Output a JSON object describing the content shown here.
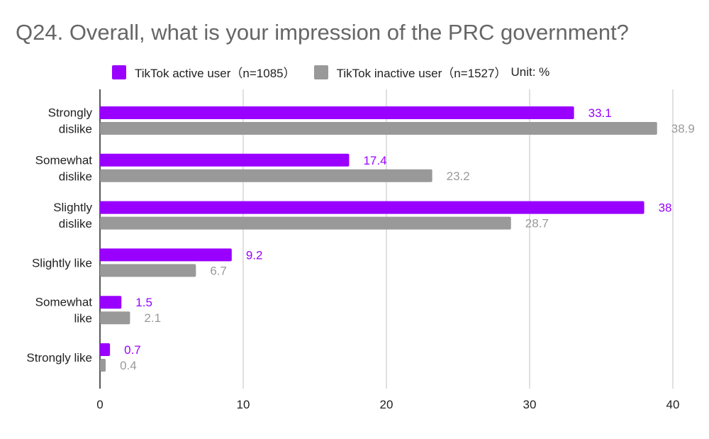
{
  "chart_data": {
    "type": "bar",
    "orientation": "horizontal",
    "title": "Q24. Overall, what is your impression of the PRC government?",
    "unit_note": "Unit: %",
    "categories": [
      [
        "Strongly",
        "dislike"
      ],
      [
        "Somewhat",
        "dislike"
      ],
      [
        "Slightly",
        "dislike"
      ],
      [
        "Slightly like"
      ],
      [
        "Somewhat",
        "like"
      ],
      [
        "Strongly like"
      ]
    ],
    "series": [
      {
        "name": "TikTok active user（n=1085）",
        "color": "#9900ff",
        "values": [
          33.1,
          17.4,
          38,
          9.2,
          1.5,
          0.7
        ]
      },
      {
        "name": "TikTok inactive user（n=1527）",
        "color": "#999999",
        "values": [
          38.9,
          23.2,
          28.7,
          6.7,
          2.1,
          0.4
        ]
      }
    ],
    "xlim": [
      0,
      40
    ],
    "xticks": [
      "0",
      "10",
      "20",
      "30",
      "40"
    ],
    "grid": true,
    "legend_position": "top",
    "data_labels": true
  }
}
